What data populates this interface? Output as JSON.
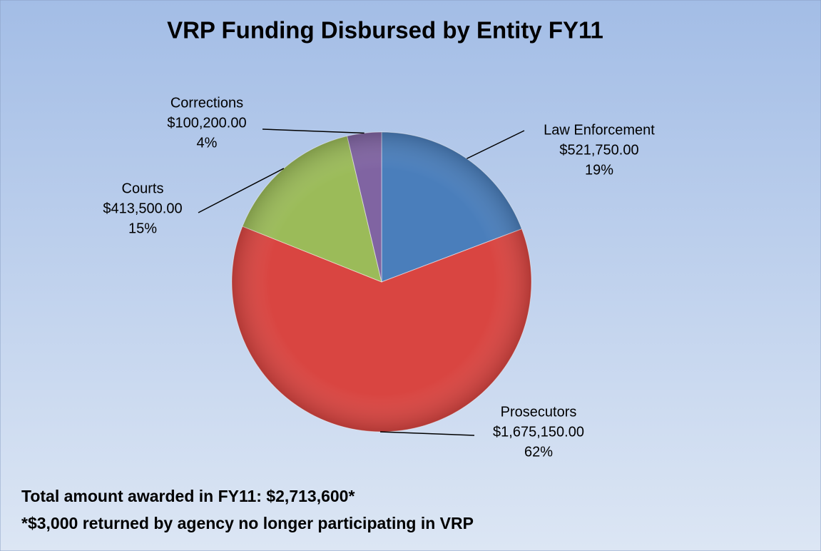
{
  "chart_data": {
    "type": "pie",
    "title": "VRP Funding Disbursed by Entity FY11",
    "categories": [
      "Law Enforcement",
      "Prosecutors",
      "Courts",
      "Corrections"
    ],
    "values": [
      521750,
      1675150,
      413500,
      100200
    ],
    "value_labels": [
      "$521,750.00",
      "$1,675,150.00",
      "$413,500.00",
      "$100,200.00"
    ],
    "percent_labels": [
      "19%",
      "62%",
      "15%",
      "4%"
    ],
    "colors": [
      "#4a7ebb",
      "#d94541",
      "#9bbb59",
      "#8064a2"
    ],
    "annotations": [
      "Total amount awarded in FY11: $2,713,600*",
      "*$3,000 returned by agency no longer participating in VRP"
    ]
  }
}
